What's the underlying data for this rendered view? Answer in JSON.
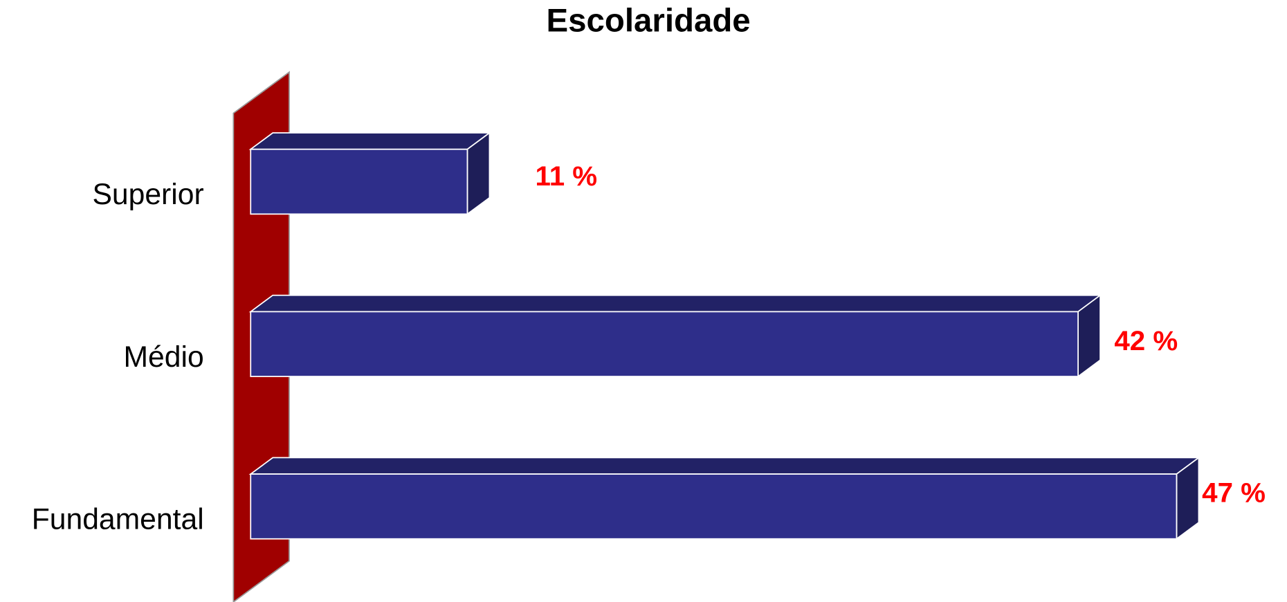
{
  "chart_data": {
    "type": "bar3d_horizontal",
    "title": "Escolaridade",
    "categories": [
      "Superior",
      "Médio",
      "Fundamental"
    ],
    "values": [
      11,
      42,
      47
    ],
    "value_labels": [
      "11 %",
      "42 %",
      "47 %"
    ],
    "color": "#2e2e8a",
    "label_color": "#ff0000",
    "wall_color": "#a00000"
  }
}
